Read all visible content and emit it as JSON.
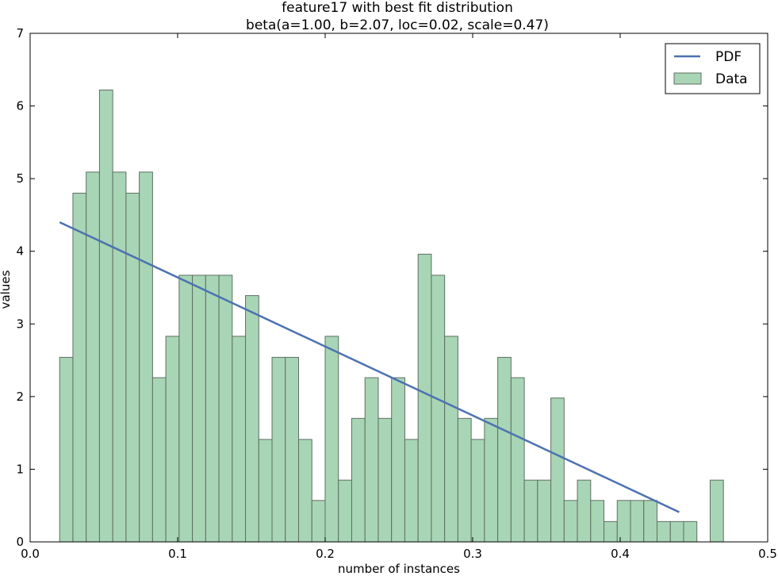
{
  "chart_data": {
    "type": "bar",
    "title": "feature17 with best fit distribution",
    "subtitle": "beta(a=1.00, b=2.07, loc=0.02, scale=0.47)",
    "xlabel": "number of instances",
    "ylabel": "values",
    "xlim": [
      0.0,
      0.5
    ],
    "ylim": [
      0,
      7
    ],
    "xticks": [
      "0.0",
      "0.1",
      "0.2",
      "0.3",
      "0.4",
      "0.5"
    ],
    "yticks": [
      "0",
      "1",
      "2",
      "3",
      "4",
      "5",
      "6",
      "7"
    ],
    "grid": false,
    "legend_position": "top-right",
    "bin_start": 0.02,
    "bin_width": 0.009,
    "series": [
      {
        "name": "Data",
        "kind": "histogram",
        "color": "#a8d5b5",
        "edge_color": "#5f6f62",
        "values": [
          2.54,
          4.8,
          5.09,
          6.22,
          5.09,
          4.8,
          5.09,
          2.26,
          2.83,
          3.67,
          3.67,
          3.67,
          3.67,
          2.83,
          3.39,
          1.41,
          2.54,
          2.54,
          1.41,
          0.57,
          2.83,
          0.85,
          1.7,
          2.26,
          1.7,
          2.26,
          1.41,
          3.96,
          3.67,
          2.83,
          1.7,
          1.41,
          1.7,
          2.54,
          2.26,
          0.85,
          0.85,
          1.98,
          0.57,
          0.85,
          0.57,
          0.28,
          0.57,
          0.57,
          0.57,
          0.28,
          0.28,
          0.28,
          0,
          0.85
        ]
      },
      {
        "name": "PDF",
        "kind": "line",
        "color": "#4c72b0",
        "x": [
          0.02,
          0.44
        ],
        "y": [
          4.4,
          0.41
        ]
      }
    ]
  }
}
